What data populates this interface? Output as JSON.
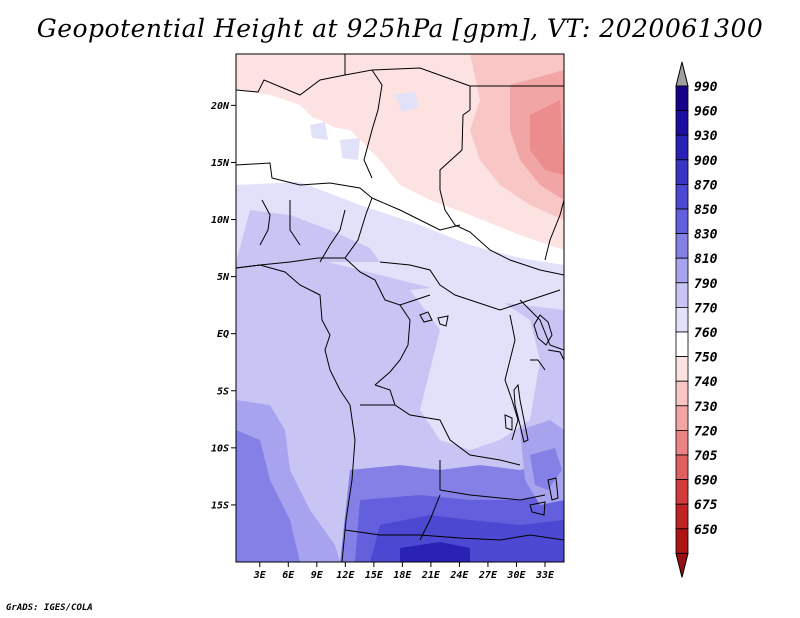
{
  "title": "Geopotential Height at 925hPa [gpm], VT: 2020061300",
  "credit": "GrADS: IGES/COLA",
  "map": {
    "lat_labels": [
      {
        "label": "20N",
        "lat": 20
      },
      {
        "label": "15N",
        "lat": 15
      },
      {
        "label": "10N",
        "lat": 10
      },
      {
        "label": "5N",
        "lat": 5
      },
      {
        "label": "EQ",
        "lat": 0
      },
      {
        "label": "5S",
        "lat": -5
      },
      {
        "label": "10S",
        "lat": -10
      },
      {
        "label": "15S",
        "lat": -15
      }
    ],
    "lon_labels": [
      {
        "label": "3E",
        "lon": 3
      },
      {
        "label": "6E",
        "lon": 6
      },
      {
        "label": "9E",
        "lon": 9
      },
      {
        "label": "12E",
        "lon": 12
      },
      {
        "label": "15E",
        "lon": 15
      },
      {
        "label": "18E",
        "lon": 18
      },
      {
        "label": "21E",
        "lon": 21
      },
      {
        "label": "24E",
        "lon": 24
      },
      {
        "label": "27E",
        "lon": 27
      },
      {
        "label": "30E",
        "lon": 30
      },
      {
        "label": "33E",
        "lon": 33
      }
    ]
  },
  "colorbar": {
    "levels": [
      {
        "label": "990",
        "color": "#17008a"
      },
      {
        "label": "960",
        "color": "#1c0fa0"
      },
      {
        "label": "930",
        "color": "#2a22b4"
      },
      {
        "label": "900",
        "color": "#3a34c4"
      },
      {
        "label": "870",
        "color": "#4d48d2"
      },
      {
        "label": "850",
        "color": "#645fdc"
      },
      {
        "label": "830",
        "color": "#8580e6"
      },
      {
        "label": "810",
        "color": "#a8a3ef"
      },
      {
        "label": "790",
        "color": "#c8c5f5"
      },
      {
        "label": "770",
        "color": "#e2e1fa"
      },
      {
        "label": "760",
        "color": "#ffffff"
      },
      {
        "label": "750",
        "color": "#fde2e2"
      },
      {
        "label": "740",
        "color": "#f9c6c6"
      },
      {
        "label": "730",
        "color": "#f2a5a5"
      },
      {
        "label": "720",
        "color": "#ea8383"
      },
      {
        "label": "705",
        "color": "#e06060"
      },
      {
        "label": "690",
        "color": "#d23c3c"
      },
      {
        "label": "675",
        "color": "#c02323"
      },
      {
        "label": "650",
        "color": "#ad1414"
      }
    ],
    "top_arrow_color": "#a0a0a0",
    "bottom_arrow_color": "#9a0f0f"
  }
}
